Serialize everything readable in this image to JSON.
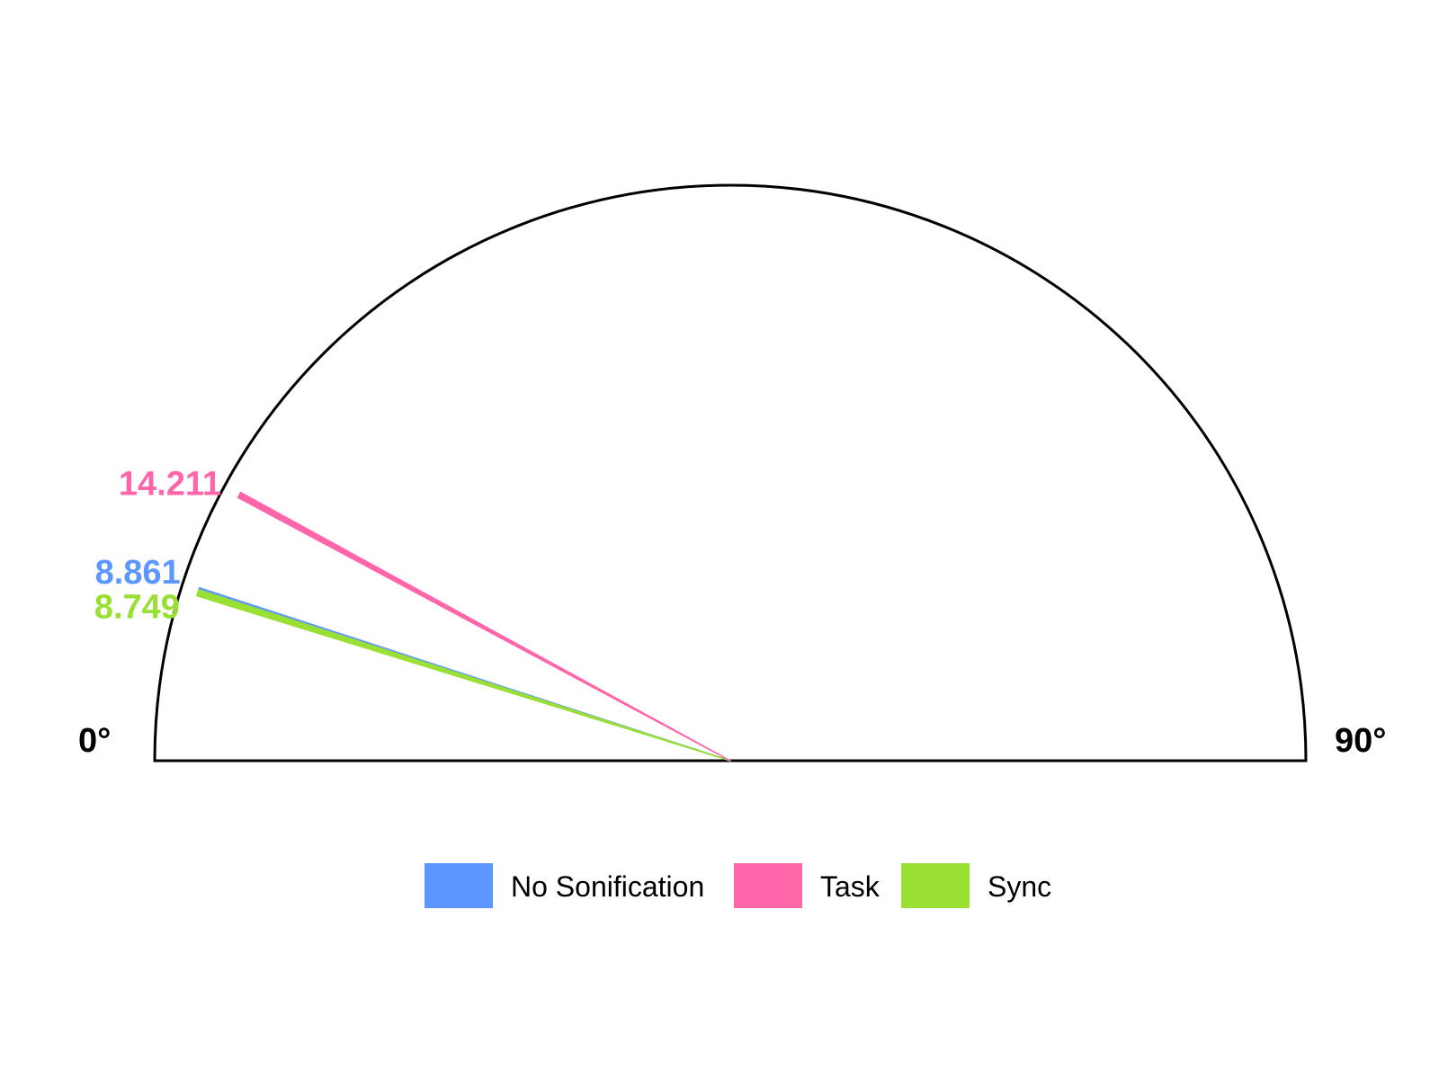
{
  "chart_data": {
    "type": "semicircle-gauge",
    "angle_range": [
      0,
      90
    ],
    "axis_labels": {
      "min": "0°",
      "max": "90°"
    },
    "series": [
      {
        "name": "No Sonification",
        "value": 8.861,
        "label": "8.861",
        "color": "#5B97FF"
      },
      {
        "name": "Task",
        "value": 14.211,
        "label": "14.211",
        "color": "#FF66AA"
      },
      {
        "name": "Sync",
        "value": 8.749,
        "label": "8.749",
        "color": "#9ADF33"
      }
    ],
    "legend": {
      "position": "bottom",
      "entries": [
        "No Sonification",
        "Task",
        "Sync"
      ]
    },
    "outline_color": "#000000"
  }
}
